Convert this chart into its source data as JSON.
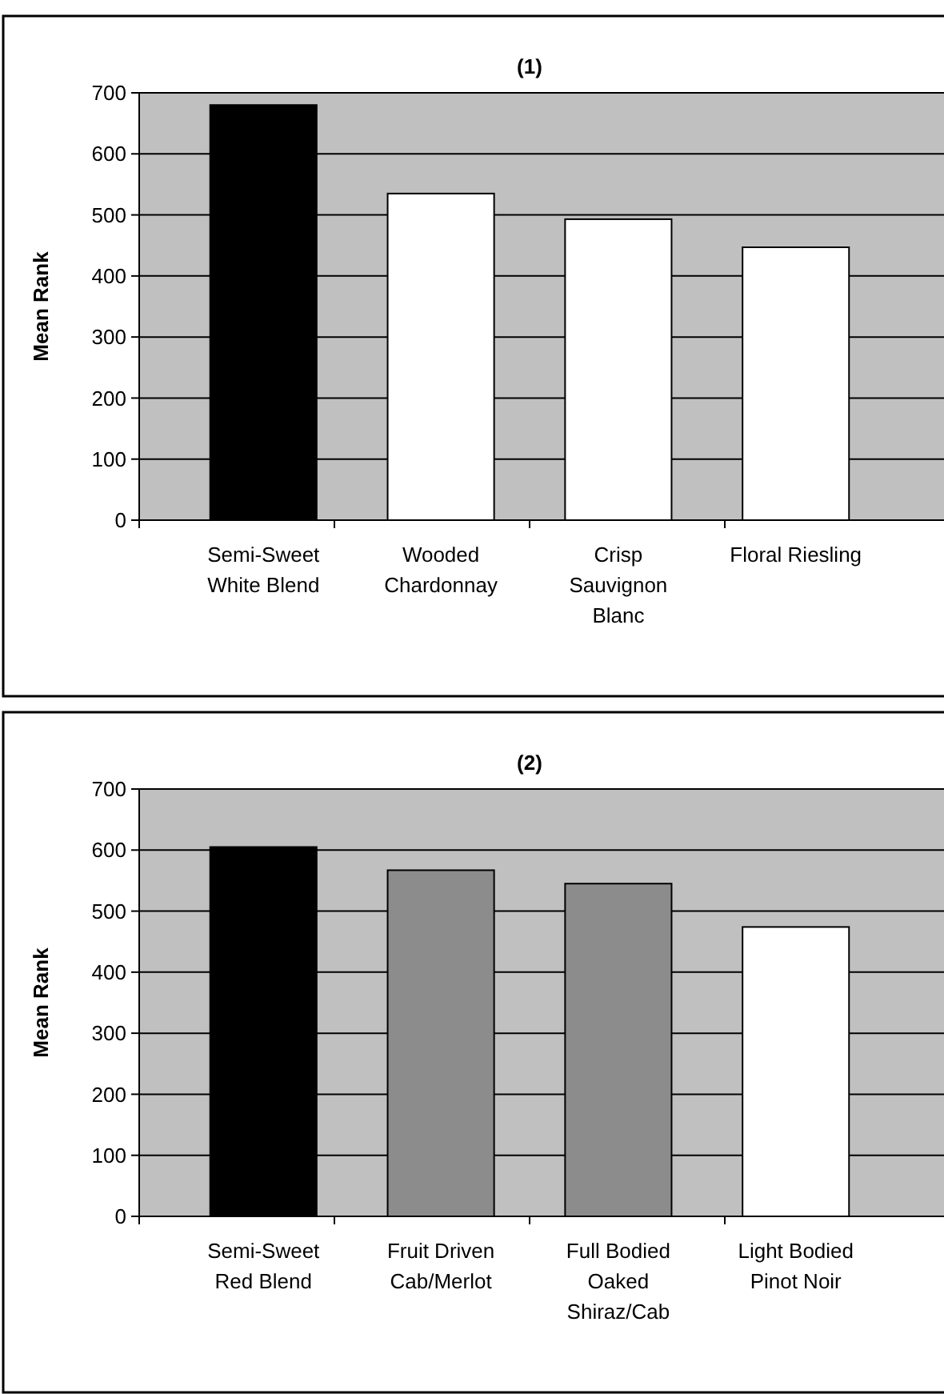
{
  "chart_data": [
    {
      "type": "bar",
      "title": "(1)",
      "ylabel": "Mean Rank",
      "categories": [
        "Semi-Sweet White Blend",
        "Wooded Chardonnay",
        "Crisp Sauvignon Blanc",
        "Floral Riesling"
      ],
      "values": [
        680,
        535,
        493,
        447
      ],
      "colors": [
        "#000000",
        "#ffffff",
        "#ffffff",
        "#ffffff"
      ],
      "ylim": [
        0,
        700
      ],
      "yticks": [
        0,
        100,
        200,
        300,
        400,
        500,
        600,
        700
      ],
      "grid": "y"
    },
    {
      "type": "bar",
      "title": "(2)",
      "ylabel": "Mean Rank",
      "categories": [
        "Semi-Sweet Red Blend",
        "Fruit Driven Cab/Merlot",
        "Full Bodied Oaked Shiraz/Cab",
        "Light Bodied Pinot Noir"
      ],
      "values": [
        605,
        567,
        545,
        474
      ],
      "colors": [
        "#000000",
        "#8c8c8c",
        "#8c8c8c",
        "#ffffff"
      ],
      "ylim": [
        0,
        700
      ],
      "yticks": [
        0,
        100,
        200,
        300,
        400,
        500,
        600,
        700
      ],
      "grid": "y"
    }
  ]
}
